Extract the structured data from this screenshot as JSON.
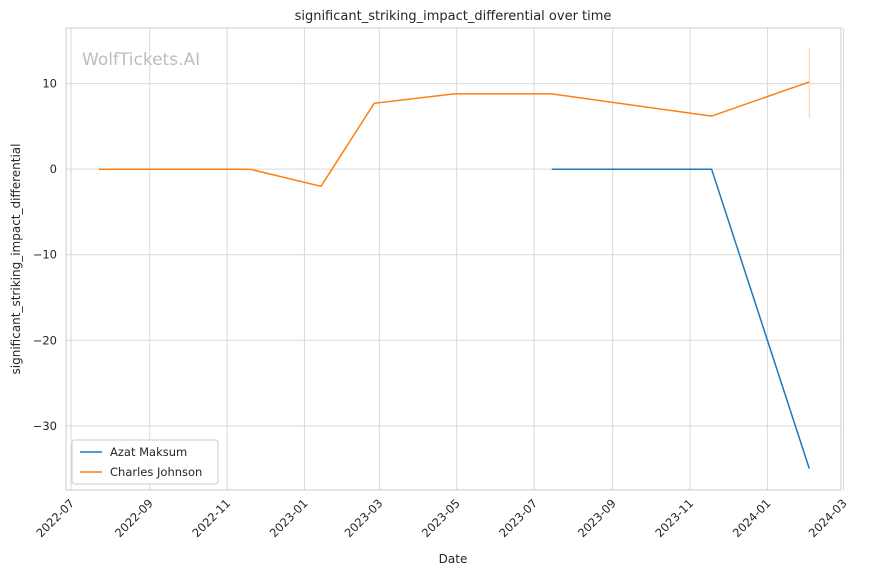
{
  "chart_data": {
    "type": "line",
    "title": "significant_striking_impact_differential over time",
    "xlabel": "Date",
    "ylabel": "significant_striking_impact_differential",
    "watermark": "WolfTickets.AI",
    "x_axis_type": "date",
    "xlim": [
      "2022-06-27",
      "2024-02-28"
    ],
    "ylim": [
      -37.5,
      16.5
    ],
    "x_ticks": [
      "2022-07-01",
      "2022-09-01",
      "2022-11-01",
      "2023-01-01",
      "2023-03-01",
      "2023-05-01",
      "2023-07-01",
      "2023-09-01",
      "2023-11-01",
      "2024-01-01",
      "2024-03-01"
    ],
    "x_tick_labels": [
      "2022-07",
      "2022-09",
      "2022-11",
      "2023-01",
      "2023-03",
      "2023-05",
      "2023-07",
      "2023-09",
      "2023-11",
      "2024-01",
      "2024-03"
    ],
    "y_ticks": [
      10,
      0,
      -10,
      -20,
      -30
    ],
    "y_tick_labels": [
      "10",
      "0",
      "−10",
      "−20",
      "−30"
    ],
    "grid": true,
    "legend_position": "bottom-left",
    "series": [
      {
        "name": "Azat Maksum",
        "color": "#1f77b4",
        "x": [
          "2023-07-15",
          "2023-11-18",
          "2024-02-03"
        ],
        "y": [
          0,
          0,
          -35
        ]
      },
      {
        "name": "Charles Johnson",
        "color": "#ff7f0e",
        "x": [
          "2022-07-23",
          "2022-11-19",
          "2023-01-14",
          "2023-02-25",
          "2023-04-29",
          "2023-07-15",
          "2023-11-18",
          "2024-02-03"
        ],
        "y": [
          0,
          0,
          -2,
          7.7,
          8.8,
          8.8,
          6.2,
          10.2
        ]
      }
    ],
    "error_bar": {
      "series": "Charles Johnson",
      "x": "2024-02-03",
      "y_low": 6,
      "y_high": 14.2,
      "color": "#ffd9b0"
    }
  }
}
